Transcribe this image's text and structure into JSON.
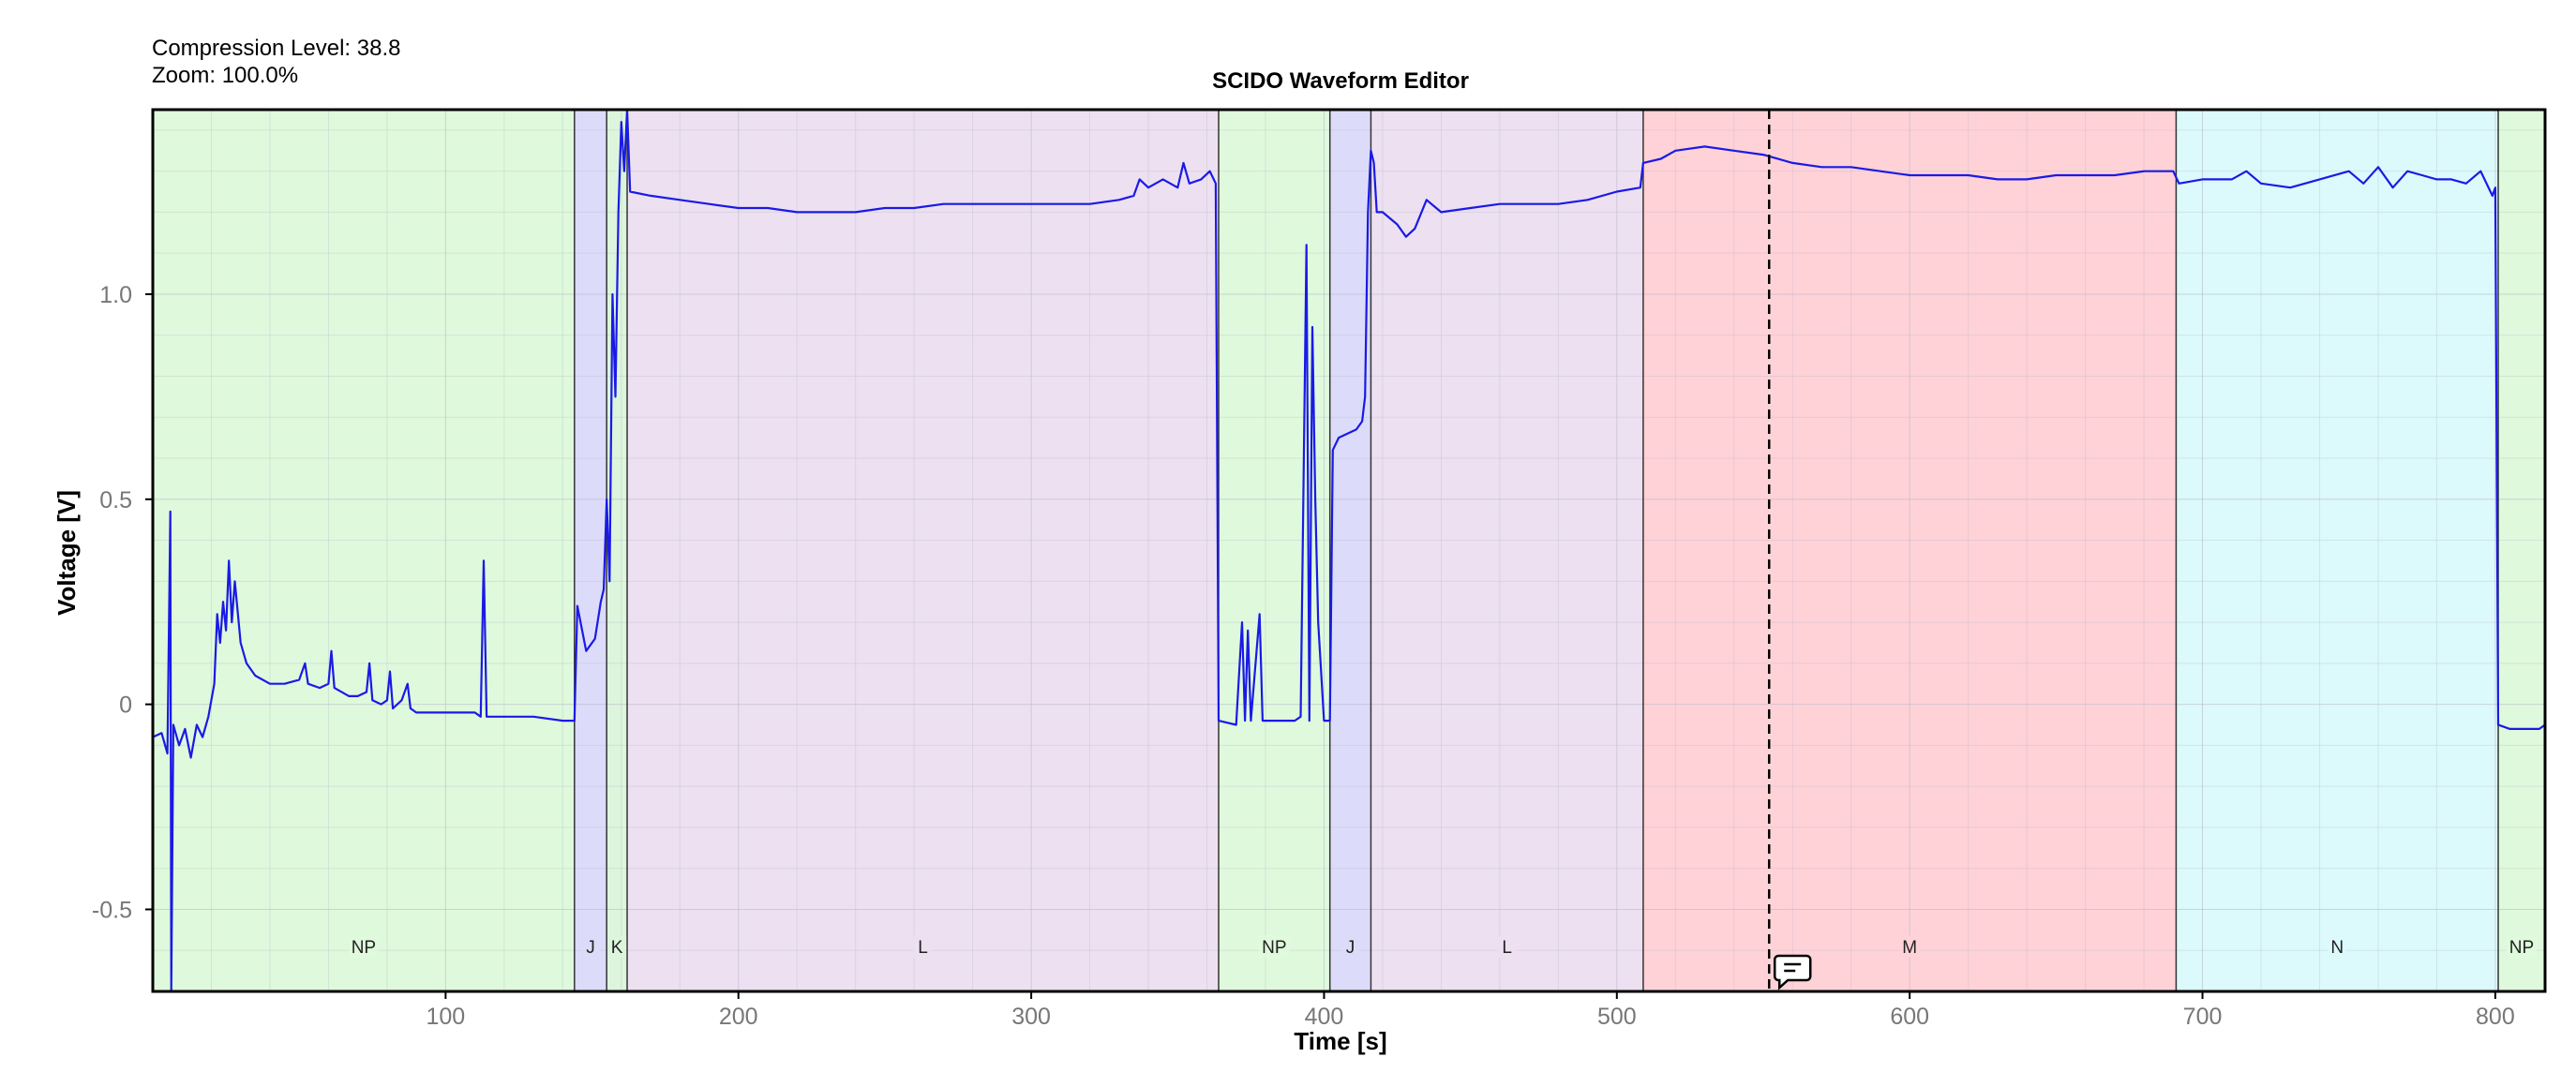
{
  "status": {
    "compression_label": "Compression Level:",
    "compression_value": "38.8",
    "zoom_label": "Zoom:",
    "zoom_value": "100.0%"
  },
  "colors": {
    "NP": "#dff9dc",
    "J": "#dcdcfa",
    "K": "#dcf5dc",
    "L": "#ede0f1",
    "M": "#ffd2d7",
    "N": "#dcf9fb",
    "signal": "#1a1ae6"
  },
  "annotation": {
    "x": 552,
    "icon": "comment-icon"
  },
  "chart_data": {
    "type": "line",
    "title": "SCIDO Waveform Editor",
    "xlabel": "Time [s]",
    "ylabel": "Voltage [V]",
    "xlim": [
      0,
      817
    ],
    "ylim": [
      -0.7,
      1.45
    ],
    "xticks": [
      100,
      200,
      300,
      400,
      500,
      600,
      700,
      800
    ],
    "yticks": [
      -0.5,
      0,
      0.5,
      1.0
    ],
    "ytick_labels": [
      "-0.5",
      "0",
      "0.5",
      "1.0"
    ],
    "grid": true,
    "segments": [
      {
        "label": "NP",
        "start": 0,
        "end": 144
      },
      {
        "label": "J",
        "start": 144,
        "end": 155
      },
      {
        "label": "K",
        "start": 155,
        "end": 162
      },
      {
        "label": "L",
        "start": 162,
        "end": 364
      },
      {
        "label": "NP",
        "start": 364,
        "end": 402
      },
      {
        "label": "J",
        "start": 402,
        "end": 416
      },
      {
        "label": "L",
        "start": 416,
        "end": 509
      },
      {
        "label": "M",
        "start": 509,
        "end": 691
      },
      {
        "label": "N",
        "start": 691,
        "end": 801
      },
      {
        "label": "NP",
        "start": 801,
        "end": 817
      }
    ],
    "series": [
      {
        "points": [
          [
            0,
            -0.08
          ],
          [
            3,
            -0.07
          ],
          [
            5,
            -0.12
          ],
          [
            6,
            0.47
          ],
          [
            6.3,
            -0.7
          ],
          [
            7,
            -0.05
          ],
          [
            9,
            -0.1
          ],
          [
            11,
            -0.06
          ],
          [
            13,
            -0.13
          ],
          [
            15,
            -0.05
          ],
          [
            17,
            -0.08
          ],
          [
            19,
            -0.03
          ],
          [
            21,
            0.05
          ],
          [
            22,
            0.22
          ],
          [
            23,
            0.15
          ],
          [
            24,
            0.25
          ],
          [
            25,
            0.18
          ],
          [
            26,
            0.35
          ],
          [
            27,
            0.2
          ],
          [
            28,
            0.3
          ],
          [
            30,
            0.15
          ],
          [
            32,
            0.1
          ],
          [
            35,
            0.07
          ],
          [
            40,
            0.05
          ],
          [
            45,
            0.05
          ],
          [
            50,
            0.06
          ],
          [
            52,
            0.1
          ],
          [
            53,
            0.05
          ],
          [
            57,
            0.04
          ],
          [
            60,
            0.05
          ],
          [
            61,
            0.13
          ],
          [
            62,
            0.04
          ],
          [
            67,
            0.02
          ],
          [
            70,
            0.02
          ],
          [
            73,
            0.03
          ],
          [
            74,
            0.1
          ],
          [
            75,
            0.01
          ],
          [
            78,
            0.0
          ],
          [
            80,
            0.01
          ],
          [
            81,
            0.08
          ],
          [
            82,
            -0.01
          ],
          [
            85,
            0.01
          ],
          [
            87,
            0.05
          ],
          [
            88,
            -0.01
          ],
          [
            90,
            -0.02
          ],
          [
            95,
            -0.02
          ],
          [
            100,
            -0.02
          ],
          [
            105,
            -0.02
          ],
          [
            110,
            -0.02
          ],
          [
            112,
            -0.03
          ],
          [
            113,
            0.35
          ],
          [
            114,
            -0.03
          ],
          [
            120,
            -0.03
          ],
          [
            130,
            -0.03
          ],
          [
            140,
            -0.04
          ],
          [
            144,
            -0.04
          ],
          [
            145,
            0.24
          ],
          [
            148,
            0.13
          ],
          [
            151,
            0.16
          ],
          [
            153,
            0.25
          ],
          [
            154,
            0.28
          ],
          [
            155,
            0.5
          ],
          [
            156,
            0.3
          ],
          [
            157,
            1.0
          ],
          [
            158,
            0.75
          ],
          [
            159,
            1.2
          ],
          [
            160,
            1.42
          ],
          [
            161,
            1.3
          ],
          [
            162,
            1.45
          ],
          [
            163,
            1.25
          ],
          [
            170,
            1.24
          ],
          [
            180,
            1.23
          ],
          [
            190,
            1.22
          ],
          [
            200,
            1.21
          ],
          [
            210,
            1.21
          ],
          [
            220,
            1.2
          ],
          [
            230,
            1.2
          ],
          [
            240,
            1.2
          ],
          [
            250,
            1.21
          ],
          [
            260,
            1.21
          ],
          [
            270,
            1.22
          ],
          [
            280,
            1.22
          ],
          [
            290,
            1.22
          ],
          [
            300,
            1.22
          ],
          [
            310,
            1.22
          ],
          [
            320,
            1.22
          ],
          [
            330,
            1.23
          ],
          [
            335,
            1.24
          ],
          [
            337,
            1.28
          ],
          [
            340,
            1.26
          ],
          [
            345,
            1.28
          ],
          [
            350,
            1.26
          ],
          [
            352,
            1.32
          ],
          [
            354,
            1.27
          ],
          [
            358,
            1.28
          ],
          [
            361,
            1.3
          ],
          [
            363,
            1.27
          ],
          [
            364,
            -0.04
          ],
          [
            370,
            -0.05
          ],
          [
            372,
            0.2
          ],
          [
            373,
            -0.04
          ],
          [
            374,
            0.18
          ],
          [
            375,
            -0.04
          ],
          [
            378,
            0.22
          ],
          [
            379,
            -0.04
          ],
          [
            384,
            -0.04
          ],
          [
            390,
            -0.04
          ],
          [
            392,
            -0.03
          ],
          [
            394,
            1.12
          ],
          [
            395,
            -0.04
          ],
          [
            396,
            0.92
          ],
          [
            397,
            0.5
          ],
          [
            398,
            0.2
          ],
          [
            400,
            -0.04
          ],
          [
            402,
            -0.04
          ],
          [
            403,
            0.62
          ],
          [
            405,
            0.65
          ],
          [
            408,
            0.66
          ],
          [
            411,
            0.67
          ],
          [
            413,
            0.69
          ],
          [
            414,
            0.75
          ],
          [
            415,
            1.2
          ],
          [
            416,
            1.35
          ],
          [
            417,
            1.32
          ],
          [
            418,
            1.2
          ],
          [
            420,
            1.2
          ],
          [
            425,
            1.17
          ],
          [
            428,
            1.14
          ],
          [
            431,
            1.16
          ],
          [
            435,
            1.23
          ],
          [
            440,
            1.2
          ],
          [
            450,
            1.21
          ],
          [
            460,
            1.22
          ],
          [
            470,
            1.22
          ],
          [
            480,
            1.22
          ],
          [
            490,
            1.23
          ],
          [
            500,
            1.25
          ],
          [
            508,
            1.26
          ],
          [
            509,
            1.32
          ],
          [
            515,
            1.33
          ],
          [
            520,
            1.35
          ],
          [
            530,
            1.36
          ],
          [
            540,
            1.35
          ],
          [
            550,
            1.34
          ],
          [
            560,
            1.32
          ],
          [
            570,
            1.31
          ],
          [
            580,
            1.31
          ],
          [
            590,
            1.3
          ],
          [
            600,
            1.29
          ],
          [
            610,
            1.29
          ],
          [
            620,
            1.29
          ],
          [
            630,
            1.28
          ],
          [
            640,
            1.28
          ],
          [
            650,
            1.29
          ],
          [
            660,
            1.29
          ],
          [
            670,
            1.29
          ],
          [
            680,
            1.3
          ],
          [
            690,
            1.3
          ],
          [
            692,
            1.27
          ],
          [
            700,
            1.28
          ],
          [
            710,
            1.28
          ],
          [
            715,
            1.3
          ],
          [
            720,
            1.27
          ],
          [
            730,
            1.26
          ],
          [
            740,
            1.28
          ],
          [
            750,
            1.3
          ],
          [
            755,
            1.27
          ],
          [
            760,
            1.31
          ],
          [
            765,
            1.26
          ],
          [
            770,
            1.3
          ],
          [
            775,
            1.29
          ],
          [
            780,
            1.28
          ],
          [
            785,
            1.28
          ],
          [
            790,
            1.27
          ],
          [
            795,
            1.3
          ],
          [
            799,
            1.24
          ],
          [
            800,
            1.26
          ],
          [
            801,
            -0.05
          ],
          [
            805,
            -0.06
          ],
          [
            810,
            -0.06
          ],
          [
            815,
            -0.06
          ],
          [
            817,
            -0.05
          ]
        ]
      }
    ]
  }
}
